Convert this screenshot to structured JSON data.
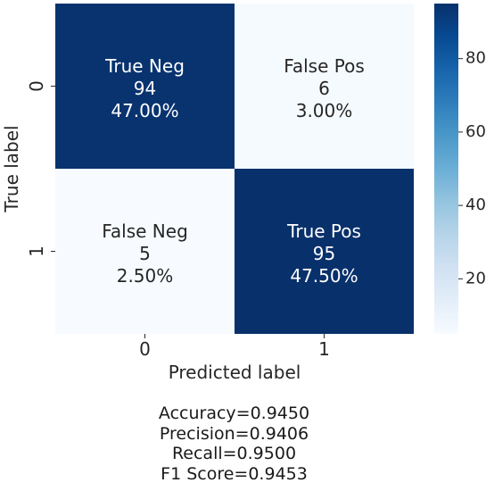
{
  "chart_data": {
    "type": "heatmap",
    "xlabel": "Predicted label",
    "ylabel": "True label",
    "x_categories": [
      "0",
      "1"
    ],
    "y_categories": [
      "0",
      "1"
    ],
    "values": [
      [
        94,
        6
      ],
      [
        5,
        95
      ]
    ],
    "cell_labels": [
      [
        {
          "name": "True Neg",
          "count": "94",
          "percent": "47.00%"
        },
        {
          "name": "False Pos",
          "count": "6",
          "percent": "3.00%"
        }
      ],
      [
        {
          "name": "False Neg",
          "count": "5",
          "percent": "2.50%"
        },
        {
          "name": "True Pos",
          "count": "95",
          "percent": "47.50%"
        }
      ]
    ],
    "colorbar": {
      "cmap": "Blues",
      "range": [
        5,
        95
      ],
      "ticks": [
        "20",
        "40",
        "60",
        "80"
      ],
      "tick_values": [
        20,
        40,
        60,
        80
      ]
    },
    "colors": {
      "low": "#f7fbff",
      "high": "#08306b"
    }
  },
  "metrics": {
    "accuracy": "Accuracy=0.9450",
    "precision": "Precision=0.9406",
    "recall": "Recall=0.9500",
    "f1": "F1 Score=0.9453"
  }
}
